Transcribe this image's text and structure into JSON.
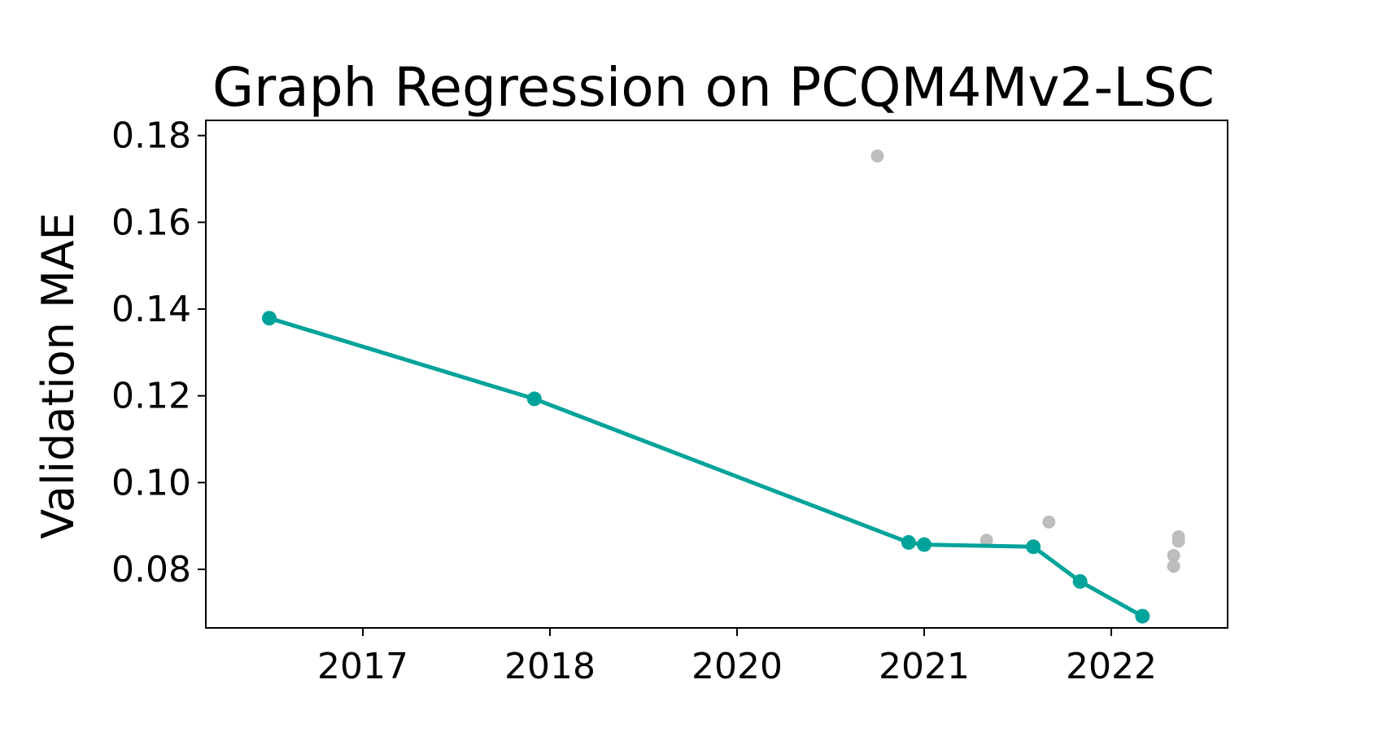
{
  "chart_data": {
    "type": "scatter",
    "title": "Graph Regression on PCQM4Mv2-LSC",
    "xlabel": "",
    "ylabel": "Validation MAE",
    "x_tick_labels": [
      "2017",
      "2018",
      "2020",
      "2021",
      "2022"
    ],
    "y_ticks": [
      0.08,
      0.1,
      0.12,
      0.14,
      0.16,
      0.18
    ],
    "y_tick_labels": [
      "0.08",
      "0.10",
      "0.12",
      "0.14",
      "0.16",
      "0.18"
    ],
    "ylim": [
      0.0665,
      0.1835
    ],
    "grid": false,
    "colors": {
      "frontier": "#00a39a",
      "other": "#bdbdbd"
    },
    "series": [
      {
        "role": "state-of-the-art",
        "mode": "line+markers",
        "points": [
          {
            "x": "2016-07",
            "y": 0.1379
          },
          {
            "x": "2017-12",
            "y": 0.1193
          },
          {
            "x": "2020-12",
            "y": 0.0862
          },
          {
            "x": "2021-01",
            "y": 0.0857
          },
          {
            "x": "2021-08",
            "y": 0.0852
          },
          {
            "x": "2021-11",
            "y": 0.0772
          },
          {
            "x": "2022-03",
            "y": 0.0692
          }
        ]
      },
      {
        "role": "other",
        "mode": "markers",
        "points": [
          {
            "x": "2020-10",
            "y": 0.1753
          },
          {
            "x": "2021-05",
            "y": 0.0867
          },
          {
            "x": "2021-09",
            "y": 0.0909
          },
          {
            "x": "2022-05",
            "y": 0.0875
          },
          {
            "x": "2022-05",
            "y": 0.0865
          },
          {
            "x": "2022-05",
            "y": 0.0832
          },
          {
            "x": "2022-05",
            "y": 0.0807
          }
        ]
      }
    ]
  }
}
